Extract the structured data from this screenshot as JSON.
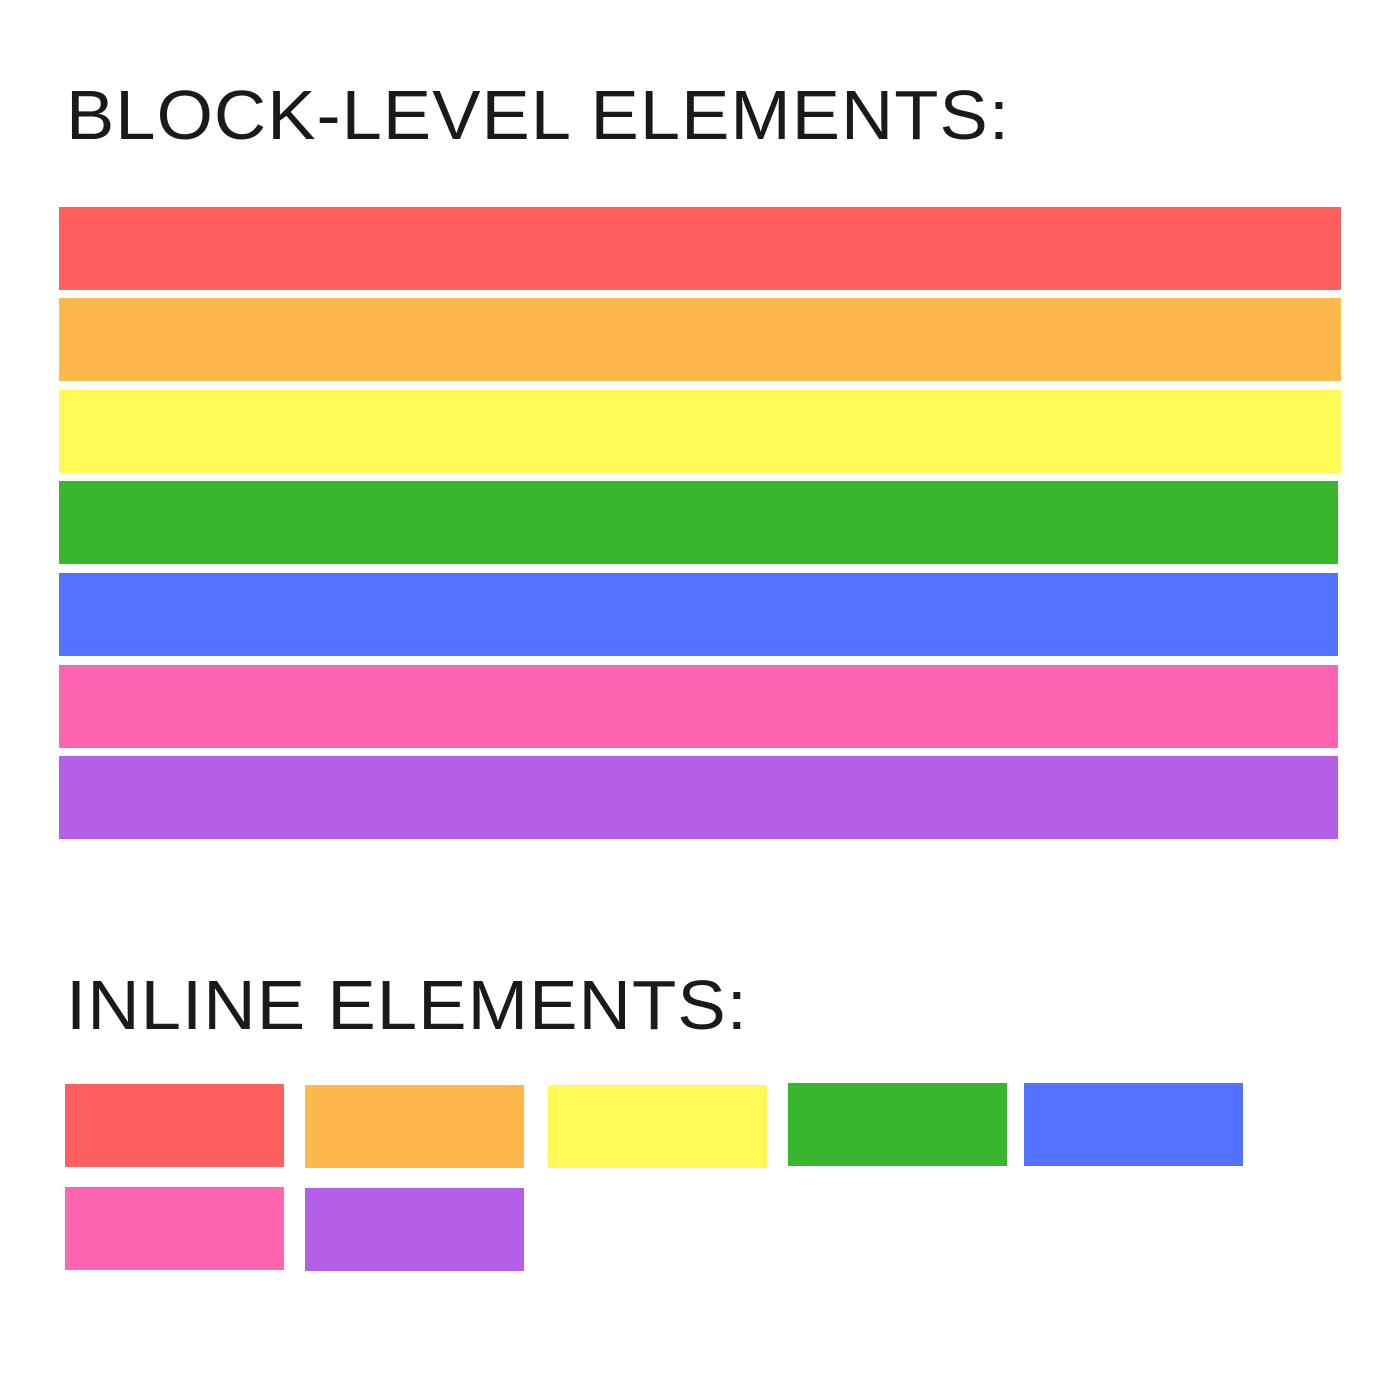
{
  "block_section": {
    "title": "BLOCK-LEVEL ELEMENTS:",
    "colors": [
      "#FF5F5F",
      "#FFB84C",
      "#FFF957",
      "#38B62D",
      "#5271FF",
      "#FF64B0",
      "#B45FE6"
    ]
  },
  "inline_section": {
    "title": "INLINE ELEMENTS:",
    "colors": [
      "#FF5F5F",
      "#FFB84C",
      "#FFF957",
      "#38B62D",
      "#5271FF",
      "#FF64B0",
      "#B45FE6"
    ]
  }
}
